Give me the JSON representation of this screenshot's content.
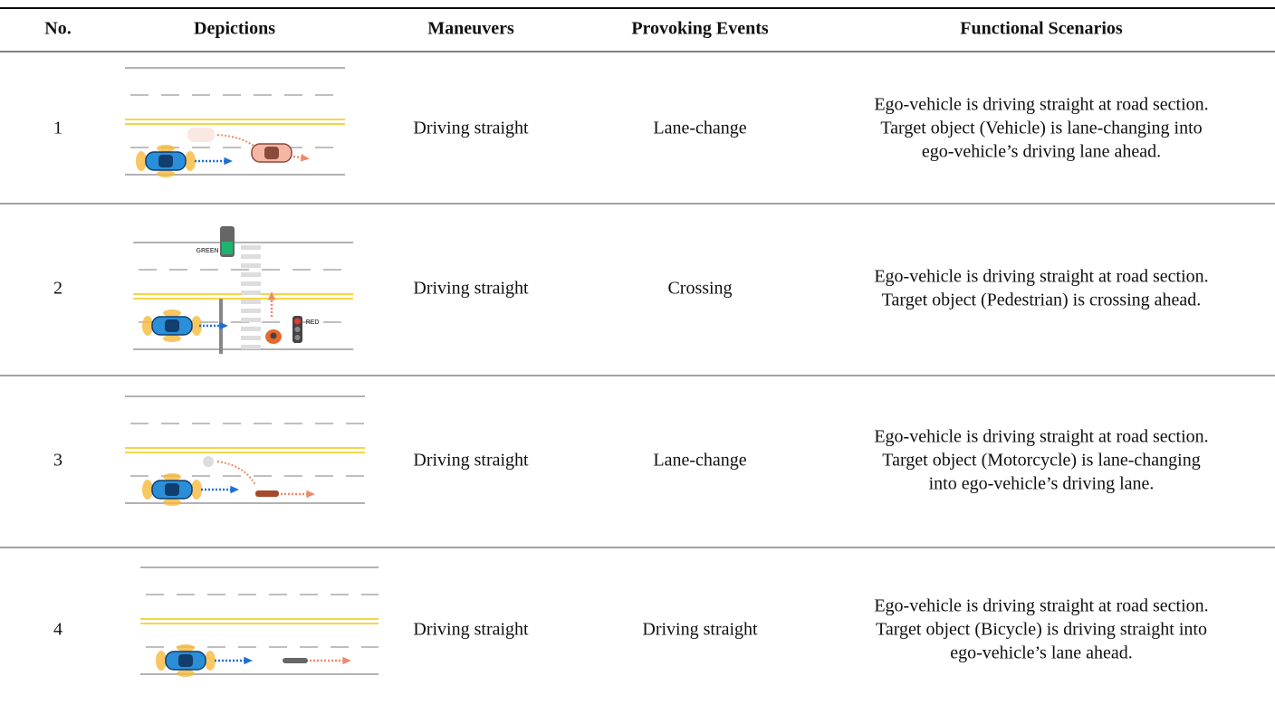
{
  "table": {
    "header": [
      "No.",
      "Depictions",
      "Maneuvers",
      "Provoking Events",
      "Functional Scenarios"
    ],
    "rows": [
      {
        "no": "1",
        "maneuver": "Driving straight",
        "event": "Lane-change",
        "scenario": [
          "Ego-vehicle is driving straight at road section.",
          "Target object (Vehicle) is lane-changing into",
          "ego-vehicle’s driving lane ahead."
        ]
      },
      {
        "no": "2",
        "depiction_labels": [
          "GREEN",
          "RED"
        ],
        "maneuver": "Driving straight",
        "event": "Crossing",
        "scenario": [
          "Ego-vehicle is driving straight at road section.",
          "Target object (Pedestrian) is crossing ahead."
        ]
      },
      {
        "no": "3",
        "maneuver": "Driving straight",
        "event": "Lane-change",
        "scenario": [
          "Ego-vehicle is driving straight at road section.",
          "Target object (Motorcycle) is lane-changing",
          "into ego-vehicle’s driving lane."
        ]
      },
      {
        "no": "4",
        "maneuver": "Driving straight",
        "event": "Driving straight",
        "scenario": [
          "Ego-vehicle is driving straight at road section.",
          "Target object (Bicycle) is driving straight into",
          "ego-vehicle’s lane ahead."
        ]
      }
    ]
  }
}
